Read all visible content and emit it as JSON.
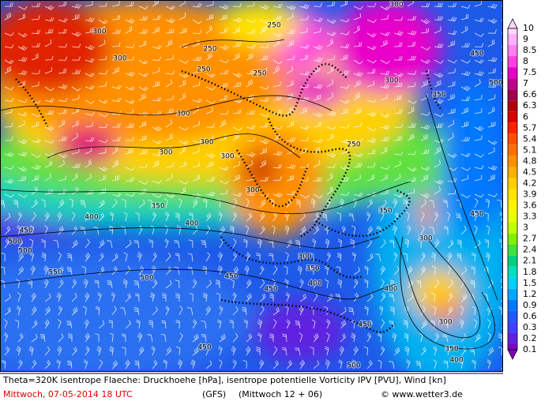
{
  "colorbar": {
    "labels": [
      10,
      9,
      8.5,
      8,
      7.5,
      7,
      6.6,
      6.3,
      6,
      5.7,
      5.4,
      5.1,
      4.8,
      4.5,
      4.2,
      3.9,
      3.6,
      3.3,
      3,
      2.7,
      2.4,
      2.1,
      1.8,
      1.5,
      1.2,
      0.9,
      0.6,
      0.3,
      0.2,
      0.1
    ],
    "colors": [
      "#ffd8ff",
      "#ffb0ff",
      "#ff80f0",
      "#ff40e0",
      "#e800c8",
      "#c00090",
      "#a00050",
      "#b00010",
      "#d80000",
      "#ff2000",
      "#ff5000",
      "#ff7000",
      "#ff9000",
      "#ffb000",
      "#ffd000",
      "#ffe400",
      "#fff400",
      "#e8ff00",
      "#c0ff00",
      "#80f000",
      "#40e040",
      "#00d080",
      "#00e0c0",
      "#00d0ff",
      "#00a8ff",
      "#0078ff",
      "#2058ff",
      "#4040ff",
      "#6020e0",
      "#8000c0"
    ]
  },
  "map_labels": [
    "300",
    "250",
    "300",
    "300",
    "250",
    "250",
    "250",
    "300",
    "350",
    "450",
    "500",
    "300",
    "300",
    "300",
    "250",
    "300",
    "350",
    "400",
    "400",
    "450",
    "500",
    "500",
    "550",
    "500",
    "450",
    "350",
    "300",
    "300",
    "350",
    "450",
    "400",
    "400",
    "450",
    "300",
    "450",
    "450",
    "500",
    "350",
    "400",
    "300"
  ],
  "footer": {
    "description": "Theta=320K isentrope Flaeche: Druckhoehe [hPa], isentrope potentielle Vorticity IPV [PVU], Wind [kn]",
    "date": "Mittwoch, 07-05-2014  18 UTC",
    "model": "(GFS)",
    "run": "(Mittwoch 12 + 06)",
    "copyright": "© www.wetter3.de"
  }
}
